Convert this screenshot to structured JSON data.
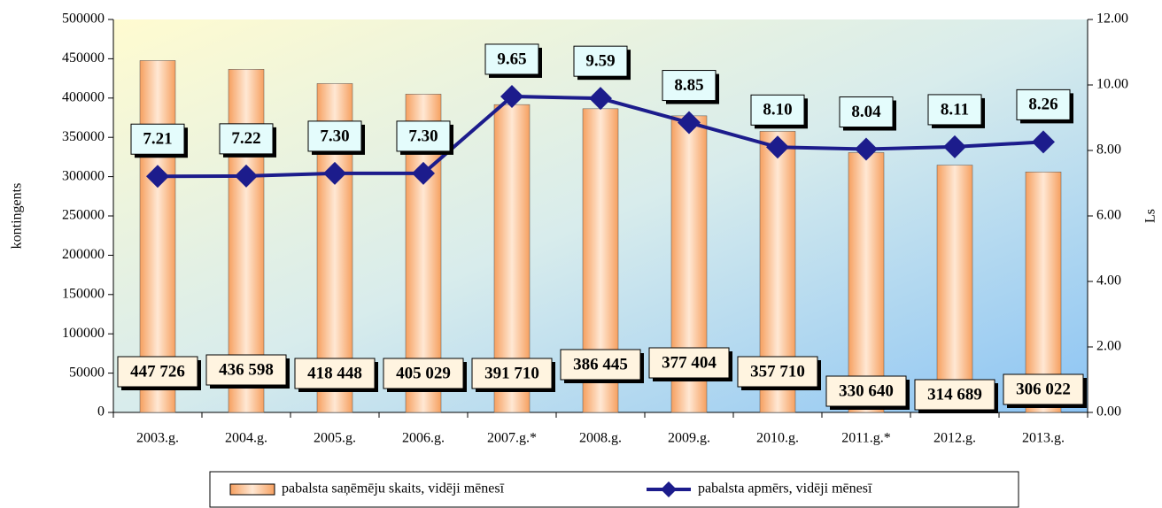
{
  "chart_data": {
    "type": "bar",
    "categories": [
      "2003.g.",
      "2004.g.",
      "2005.g.",
      "2006.g.",
      "2007.g.*",
      "2008.g.",
      "2009.g.",
      "2010.g.",
      "2011.g.*",
      "2012.g.",
      "2013.g."
    ],
    "ylabel": "kontingents",
    "y2label": "Ls",
    "ylim": [
      0,
      500000
    ],
    "yticks": [
      0,
      50000,
      100000,
      150000,
      200000,
      250000,
      300000,
      350000,
      400000,
      450000,
      500000
    ],
    "y2lim": [
      0,
      12
    ],
    "y2ticks": [
      {
        "value": 0,
        "label": "0.00"
      },
      {
        "value": 2,
        "label": "2.00"
      },
      {
        "value": 4,
        "label": "4.00"
      },
      {
        "value": 6,
        "label": "6.00"
      },
      {
        "value": 8,
        "label": "8.00"
      },
      {
        "value": 10,
        "label": "10.00"
      },
      {
        "value": 12,
        "label": "12.00"
      }
    ],
    "legend": "bottom",
    "series": [
      {
        "name": "pabalsta saņēmēju skaits, vidēji mēnesī",
        "type": "bar",
        "color": "#f7a96e",
        "values": [
          447726,
          436598,
          418448,
          405029,
          391710,
          386445,
          377404,
          357710,
          330640,
          314689,
          306022
        ],
        "value_labels": [
          "447 726",
          "436 598",
          "418 448",
          "405 029",
          "391 710",
          "386 445",
          "377 404",
          "357 710",
          "330 640",
          "314 689",
          "306 022"
        ]
      },
      {
        "name": "pabalsta apmērs, vidēji mēnesī",
        "type": "line",
        "axis": "y2",
        "color": "#1c1c8c",
        "values": [
          7.21,
          7.22,
          7.3,
          7.3,
          9.65,
          9.59,
          8.85,
          8.1,
          8.04,
          8.11,
          8.26
        ],
        "value_labels": [
          "7.21",
          "7.22",
          "7.30",
          "7.30",
          "9.65",
          "9.59",
          "8.85",
          "8.10",
          "8.04",
          "8.11",
          "8.26"
        ]
      }
    ]
  }
}
